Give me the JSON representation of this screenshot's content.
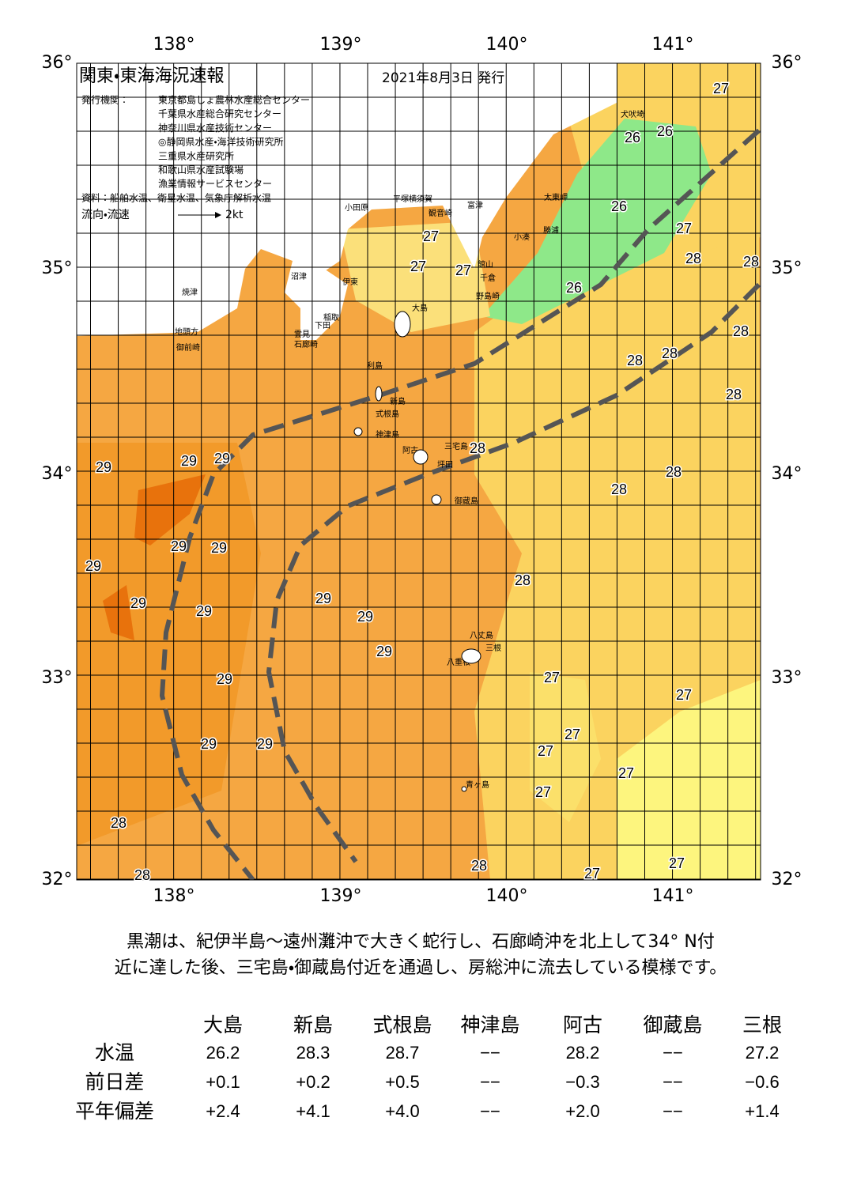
{
  "header": {
    "title": "関東・東海海況速報",
    "date": "2021年8月3日 発行",
    "issuer_label": "発行機関：",
    "issuers": [
      "東京都島しょ農林水産総合センター",
      "千葉県水産総合研究センター",
      "神奈川県水産技術センター",
      "◎静岡県水産・海洋技術研究所",
      "三重県水産研究所",
      "和歌山県水産試験場",
      "漁業情報サービスセンター"
    ],
    "source": "資料：船舶水温、衛星水温、気象庁解析水温",
    "legend": {
      "label": "流向・流速",
      "scale": "2kt"
    }
  },
  "map": {
    "lon_labels": [
      "138°",
      "139°",
      "140°",
      "141°"
    ],
    "lat_labels": [
      "36°",
      "35°",
      "34°",
      "33°",
      "32°"
    ],
    "places": [
      "犬吠埼",
      "小田原",
      "平塚",
      "横須賀",
      "富津",
      "太東岬",
      "観音崎",
      "勝浦",
      "小湊",
      "館山",
      "千倉",
      "野島崎",
      "沼津",
      "伊東",
      "焼津",
      "大島",
      "稲取",
      "下田",
      "雲見",
      "石廊崎",
      "地頭方",
      "御前崎",
      "利島",
      "新島",
      "式根島",
      "神津島",
      "三宅島",
      "阿古",
      "坪田",
      "御蔵島",
      "八丈島",
      "三根",
      "八重根",
      "青ヶ島"
    ],
    "temperatures": [
      "27",
      "26",
      "26",
      "26",
      "27",
      "28",
      "28",
      "27",
      "27",
      "27",
      "26",
      "28",
      "28",
      "28",
      "28",
      "28",
      "29",
      "29",
      "29",
      "28",
      "28",
      "29",
      "29",
      "29",
      "28",
      "29",
      "29",
      "29",
      "29",
      "29",
      "29",
      "27",
      "27",
      "27",
      "29",
      "29",
      "27",
      "27",
      "27",
      "28",
      "27",
      "28",
      "27",
      "28"
    ]
  },
  "description": [
    "黒潮は、紀伊半島～遠州灘沖で大きく蛇行し、石廊崎沖を北上して34° N付",
    "近に達した後、三宅島・御蔵島付近を通過し、房総沖に流去している模様です。"
  ],
  "table": {
    "columns": [
      "大島",
      "新島",
      "式根島",
      "神津島",
      "阿古",
      "御蔵島",
      "三根"
    ],
    "rows": [
      {
        "label": "水温",
        "cells": [
          "26.2",
          "28.3",
          "28.7",
          "−−",
          "28.2",
          "−−",
          "27.2"
        ]
      },
      {
        "label": "前日差",
        "cells": [
          "+0.1",
          "+0.2",
          "+0.5",
          "−−",
          "−0.3",
          "−−",
          "−0.6"
        ]
      },
      {
        "label": "平年偏差",
        "cells": [
          "+2.4",
          "+4.1",
          "+4.0",
          "−−",
          "+2.0",
          "−−",
          "+1.4"
        ]
      }
    ]
  }
}
